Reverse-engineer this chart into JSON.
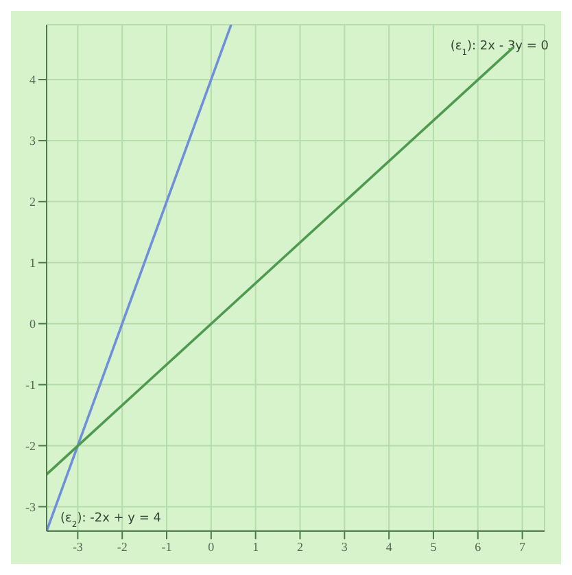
{
  "chart_data": {
    "type": "line",
    "series": [
      {
        "color": "#6f8fd8",
        "x": [
          -3.7,
          0.45
        ],
        "values": [
          -3.4,
          4.9
        ]
      },
      {
        "color": "#4f9a4f",
        "x": [
          -3.7,
          6.8
        ],
        "values": [
          -2.47,
          4.53
        ]
      }
    ],
    "xlim": [
      -3.7,
      7.5
    ],
    "ylim": [
      -3.4,
      4.9
    ],
    "xticks": [
      -3,
      -2,
      -1,
      0,
      1,
      2,
      3,
      4,
      5,
      6,
      7
    ],
    "yticks": [
      -3,
      -2,
      -1,
      0,
      1,
      2,
      3,
      4
    ],
    "grid": true,
    "marker": "none",
    "line_style": "solid",
    "annotations": [
      "(ε$_{1}$): 2x - 3y = 0",
      "(ε$_{2}$): -2x + y = 4"
    ]
  }
}
